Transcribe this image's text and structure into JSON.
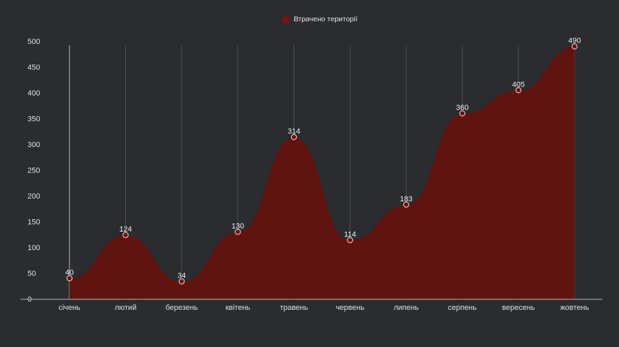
{
  "legend": {
    "label": "Втрачено території",
    "color": "#7a1412"
  },
  "colors": {
    "background": "#2a2c30",
    "area": "#611410",
    "marker": "#e8a8a8",
    "grid": "#56595e",
    "axis": "#8a8c90"
  },
  "chart_data": {
    "type": "area",
    "title": "",
    "xlabel": "",
    "ylabel": "",
    "categories": [
      "січень",
      "лютий",
      "березень",
      "квітень",
      "травень",
      "червень",
      "липень",
      "серпень",
      "вересень",
      "жовтень"
    ],
    "series": [
      {
        "name": "Втрачено території",
        "values": [
          40,
          124,
          34,
          130,
          314,
          114,
          183,
          360,
          405,
          490
        ]
      }
    ],
    "ylim": [
      0,
      500
    ],
    "yticks": [
      0,
      50,
      100,
      150,
      200,
      250,
      300,
      350,
      400,
      450,
      500
    ],
    "grid": "vertical",
    "legend_position": "top",
    "smooth": true,
    "data_labels": true
  }
}
